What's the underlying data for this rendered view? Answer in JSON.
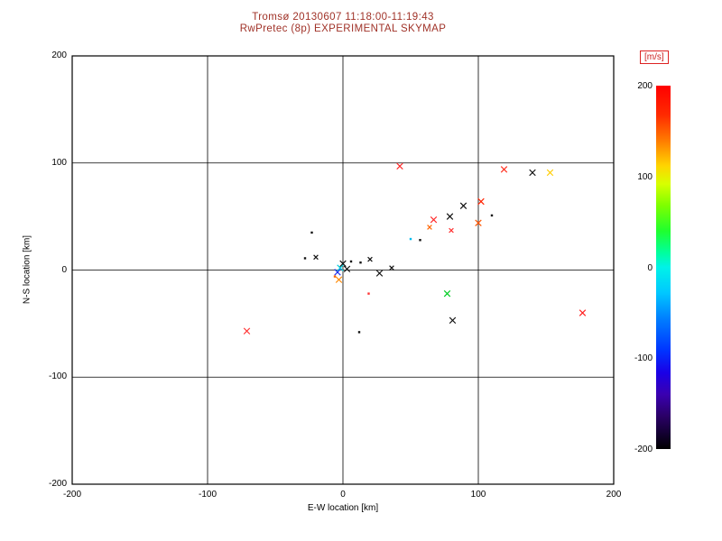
{
  "title": {
    "line1": "Tromsø 20130607 11:18:00-11:19:43",
    "line2": "RwPretec (8p) EXPERIMENTAL SKYMAP"
  },
  "colors": {
    "title_text": "#a03228",
    "axis": "#000000",
    "colorbar_label_text": "#cc2222",
    "background": "#ffffff"
  },
  "chart_data": {
    "type": "scatter",
    "title": "Tromsø 20130607 11:18:00-11:19:43 / RwPretec (8p) EXPERIMENTAL SKYMAP",
    "xlabel": "E-W location [km]",
    "ylabel": "N-S location [km]",
    "xlim": [
      -200,
      200
    ],
    "ylim": [
      -200,
      200
    ],
    "xticks": [
      -200,
      -100,
      0,
      100,
      200
    ],
    "yticks": [
      -200,
      -100,
      0,
      100,
      200
    ],
    "grid": true,
    "legend": false,
    "colorbar": {
      "label": "[m/s]",
      "lim": [
        -200,
        200
      ],
      "ticks": [
        200,
        100,
        0,
        -100,
        -200
      ],
      "colormap": "rainbow",
      "position": "right"
    },
    "points": [
      {
        "x": 42,
        "y": 97,
        "color": "#ff2222",
        "marker": "x"
      },
      {
        "x": 119,
        "y": 94,
        "color": "#ff3322",
        "marker": "x"
      },
      {
        "x": 140,
        "y": 91,
        "color": "#111111",
        "marker": "x"
      },
      {
        "x": 153,
        "y": 91,
        "color": "#ffcc00",
        "marker": "x"
      },
      {
        "x": 102,
        "y": 64,
        "color": "#ff2200",
        "marker": "x"
      },
      {
        "x": 89,
        "y": 60,
        "color": "#111111",
        "marker": "x"
      },
      {
        "x": 110,
        "y": 51,
        "color": "#111111",
        "marker": "dot"
      },
      {
        "x": 100,
        "y": 44,
        "color": "#ff5500",
        "marker": "x"
      },
      {
        "x": 79,
        "y": 50,
        "color": "#111111",
        "marker": "x"
      },
      {
        "x": 67,
        "y": 47,
        "color": "#ff2222",
        "marker": "x"
      },
      {
        "x": 64,
        "y": 40,
        "color": "#ff6600",
        "marker": "x",
        "small": true
      },
      {
        "x": 80,
        "y": 37,
        "color": "#ff3333",
        "marker": "x",
        "small": true
      },
      {
        "x": 50,
        "y": 29,
        "color": "#00bbee",
        "marker": "dot"
      },
      {
        "x": 57,
        "y": 28,
        "color": "#111111",
        "marker": "dot"
      },
      {
        "x": -23,
        "y": 35,
        "color": "#111111",
        "marker": "dot"
      },
      {
        "x": -20,
        "y": 12,
        "color": "#111111",
        "marker": "x",
        "small": true
      },
      {
        "x": -28,
        "y": 11,
        "color": "#111111",
        "marker": "dot"
      },
      {
        "x": 0,
        "y": 6,
        "color": "#111111",
        "marker": "x"
      },
      {
        "x": 6,
        "y": 8,
        "color": "#111111",
        "marker": "dot"
      },
      {
        "x": -2,
        "y": 2,
        "color": "#00ccdd",
        "marker": "x"
      },
      {
        "x": -4,
        "y": -2,
        "color": "#2233ee",
        "marker": "x"
      },
      {
        "x": 3,
        "y": 1,
        "color": "#111111",
        "marker": "x"
      },
      {
        "x": 13,
        "y": 7,
        "color": "#111111",
        "marker": "dot"
      },
      {
        "x": 20,
        "y": 10,
        "color": "#111111",
        "marker": "x",
        "small": true
      },
      {
        "x": 27,
        "y": -3,
        "color": "#111111",
        "marker": "x"
      },
      {
        "x": 36,
        "y": 2,
        "color": "#111111",
        "marker": "x",
        "small": true
      },
      {
        "x": -3,
        "y": -9,
        "color": "#ff8800",
        "marker": "x"
      },
      {
        "x": -6,
        "y": -6,
        "color": "#ff6600",
        "marker": "dot"
      },
      {
        "x": 19,
        "y": -22,
        "color": "#ff3333",
        "marker": "dot"
      },
      {
        "x": 77,
        "y": -22,
        "color": "#00cc22",
        "marker": "x"
      },
      {
        "x": 81,
        "y": -47,
        "color": "#111111",
        "marker": "x"
      },
      {
        "x": 177,
        "y": -40,
        "color": "#ff2222",
        "marker": "x"
      },
      {
        "x": -71,
        "y": -57,
        "color": "#ff3333",
        "marker": "x"
      },
      {
        "x": 12,
        "y": -58,
        "color": "#111111",
        "marker": "dot"
      }
    ]
  }
}
